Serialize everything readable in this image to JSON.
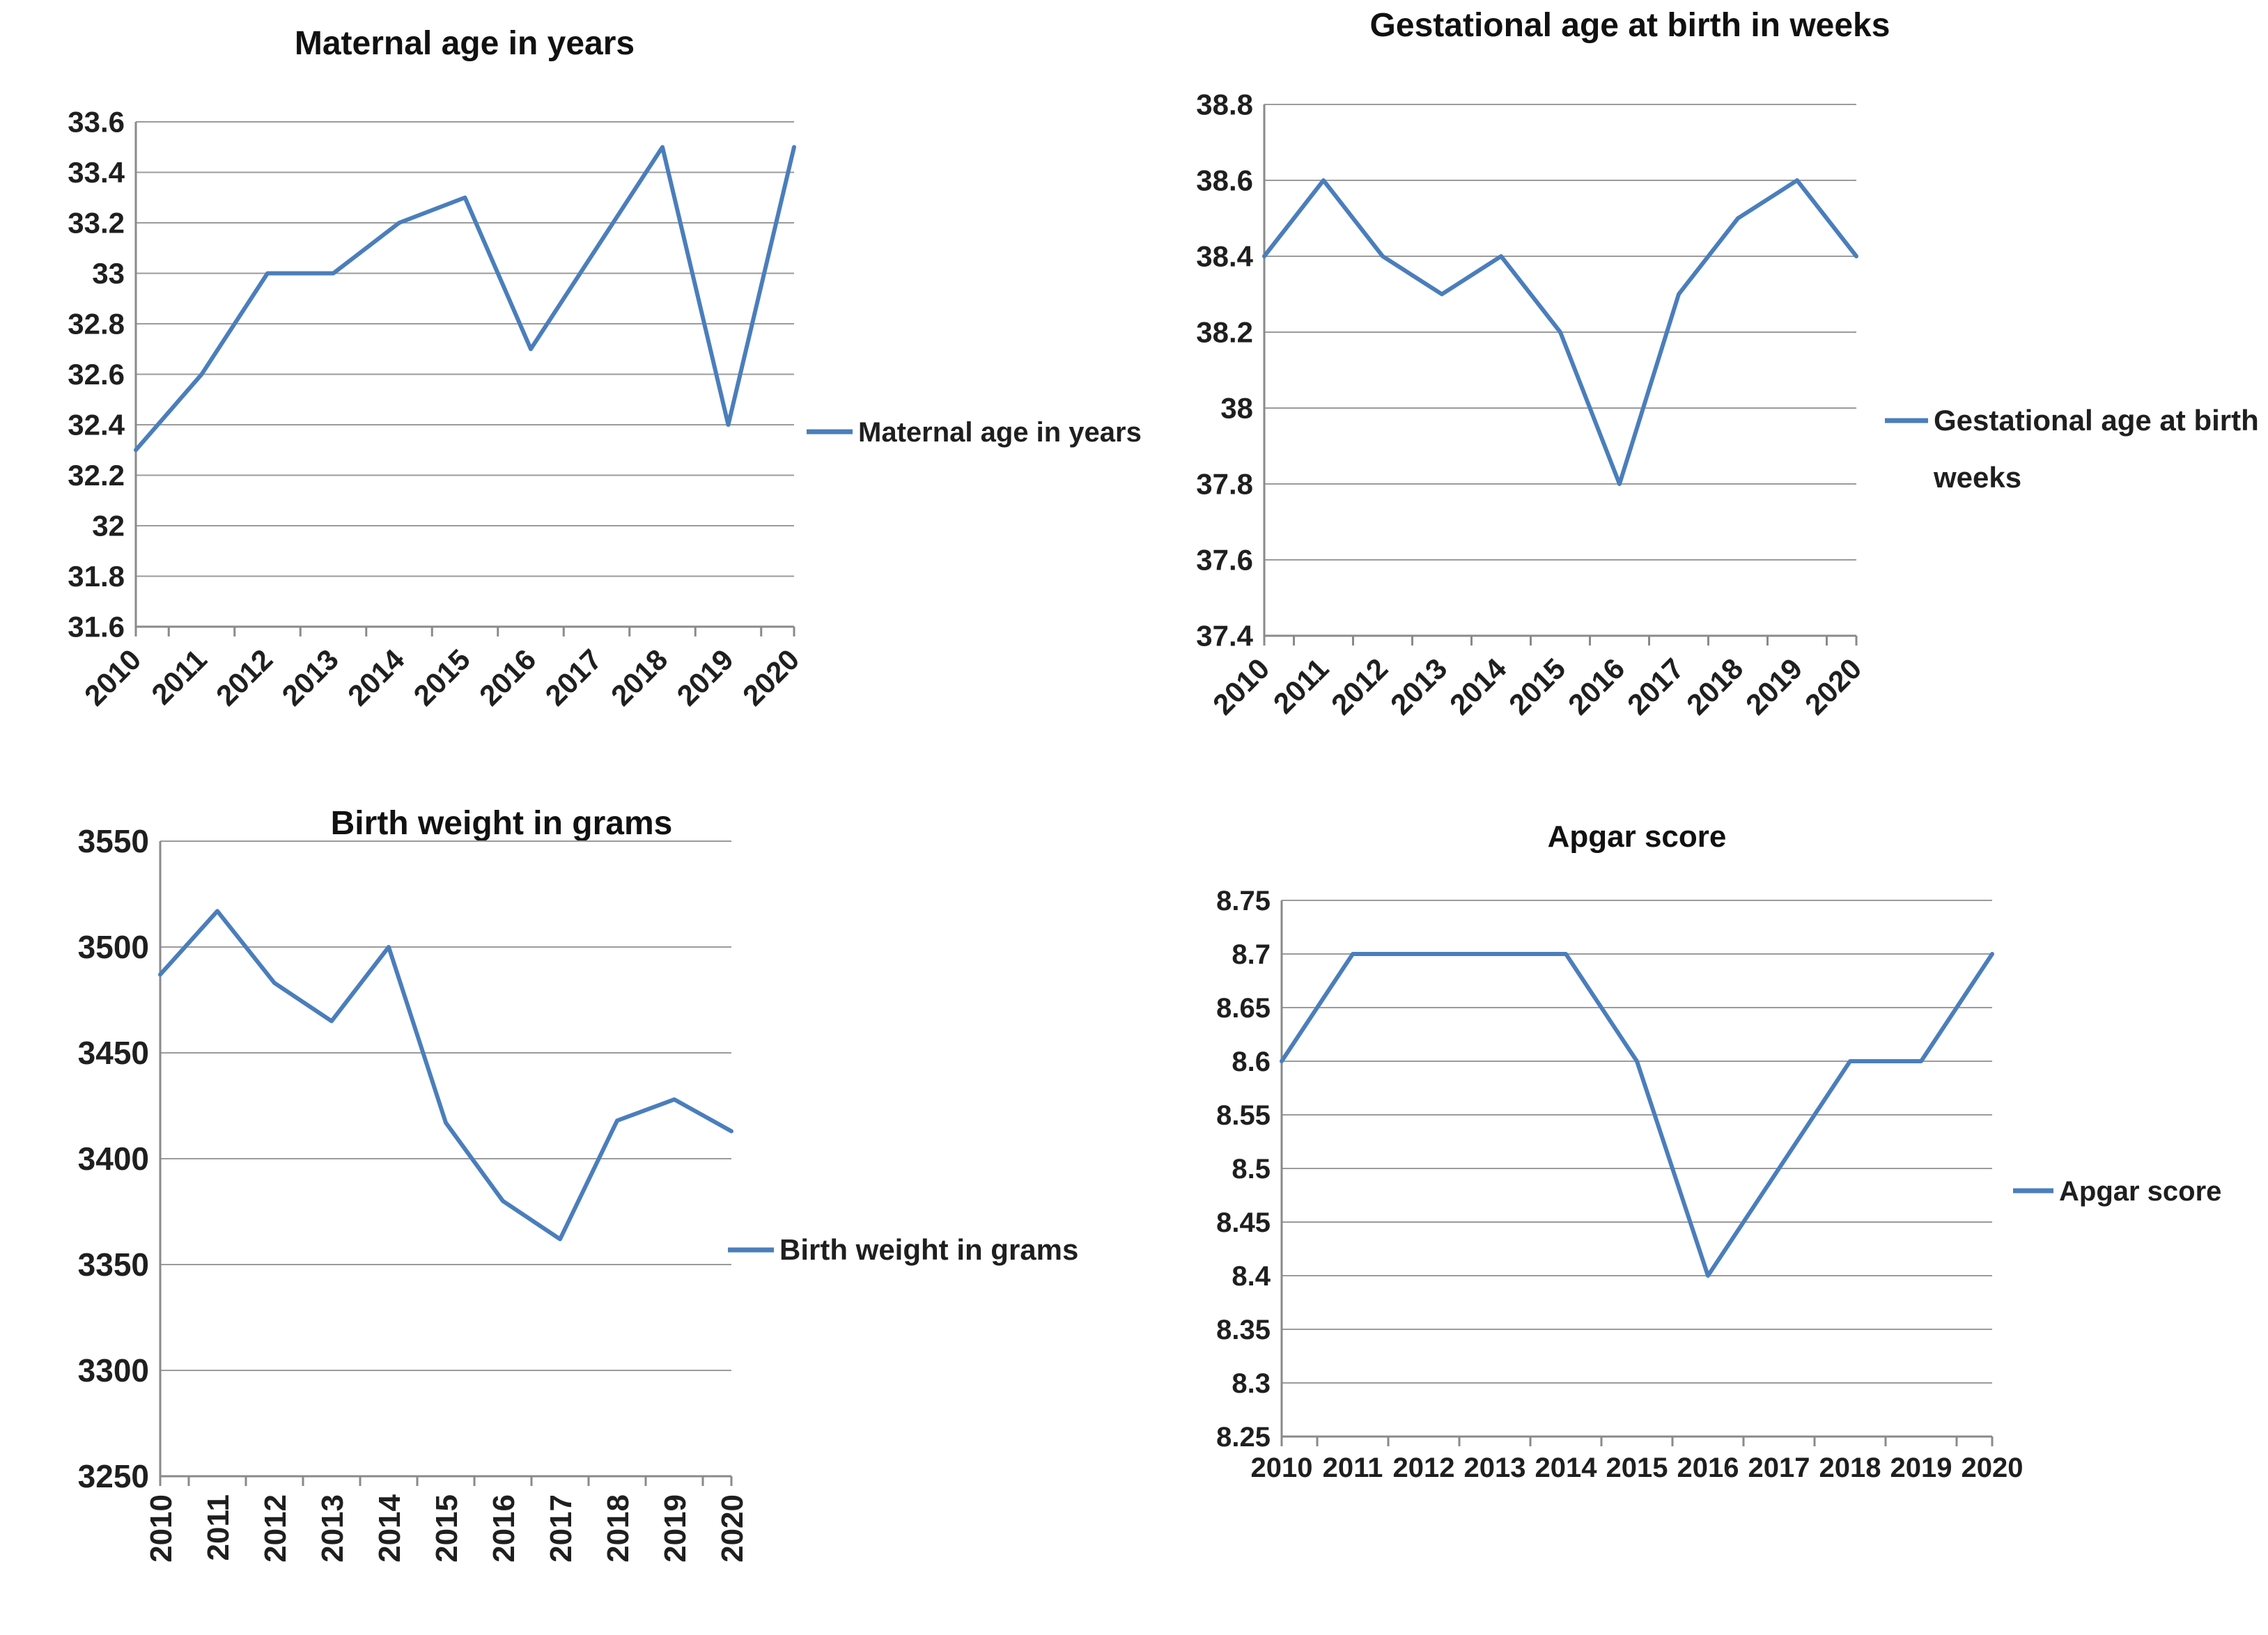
{
  "page": {
    "background": "#ffffff"
  },
  "colors": {
    "series_line": "#4a7ebb",
    "gridline": "#9b9b9b",
    "axis": "#8a8a8a",
    "tick_text": "#1f1f1f",
    "title_text": "#111111"
  },
  "chart_data": [
    {
      "type": "line",
      "title": "Maternal age in years",
      "legend": [
        "Maternal age in years"
      ],
      "legend_position": "right",
      "grid": true,
      "categories": [
        "2010",
        "2011",
        "2012",
        "2013",
        "2014",
        "2015",
        "2016",
        "2017",
        "2018",
        "2019",
        "2020"
      ],
      "values": [
        32.3,
        32.6,
        33,
        33,
        33.2,
        33.3,
        32.7,
        33.1,
        33.5,
        32.4,
        33.5
      ],
      "ylim": [
        31.6,
        33.6
      ],
      "ytick_step": 0.2,
      "ytick_labels": [
        "33.6",
        "33.4",
        "33.2",
        "33",
        "32.8",
        "32.6",
        "32.4",
        "32.2",
        "32",
        "31.8",
        "31.6"
      ],
      "xtick_rotation_deg": -45
    },
    {
      "type": "line",
      "title": "Gestational age at birth in weeks",
      "legend": [
        "Gestational age at birth in",
        "weeks"
      ],
      "legend_position": "right",
      "grid": true,
      "categories": [
        "2010",
        "2011",
        "2012",
        "2013",
        "2014",
        "2015",
        "2016",
        "2017",
        "2018",
        "2019",
        "2020"
      ],
      "values": [
        38.4,
        38.6,
        38.4,
        38.3,
        38.4,
        38.2,
        37.8,
        38.3,
        38.5,
        38.6,
        38.4
      ],
      "ylim": [
        37.4,
        38.8
      ],
      "ytick_step": 0.2,
      "ytick_labels": [
        "38.8",
        "38.6",
        "38.4",
        "38.2",
        "38",
        "37.8",
        "37.6",
        "37.4"
      ],
      "xtick_rotation_deg": -45
    },
    {
      "type": "line",
      "title": "Birth weight in grams",
      "legend": [
        "Birth weight in grams"
      ],
      "legend_position": "right",
      "grid": true,
      "categories": [
        "2010",
        "2011",
        "2012",
        "2013",
        "2014",
        "2015",
        "2016",
        "2017",
        "2018",
        "2019",
        "2020"
      ],
      "values": [
        3487,
        3517,
        3483,
        3465,
        3500,
        3417,
        3380,
        3362,
        3418,
        3428,
        3413
      ],
      "ylim": [
        3250,
        3550
      ],
      "ytick_step": 50,
      "ytick_labels": [
        "3550",
        "3500",
        "3450",
        "3400",
        "3350",
        "3300",
        "3250"
      ],
      "xtick_rotation_deg": -90
    },
    {
      "type": "line",
      "title": "Apgar score",
      "legend": [
        "Apgar score"
      ],
      "legend_position": "right",
      "grid": true,
      "categories": [
        "2010",
        "2011",
        "2012",
        "2013",
        "2014",
        "2015",
        "2016",
        "2017",
        "2018",
        "2019",
        "2020"
      ],
      "values": [
        8.6,
        8.7,
        8.7,
        8.7,
        8.7,
        8.6,
        8.4,
        8.5,
        8.6,
        8.6,
        8.7
      ],
      "ylim": [
        8.25,
        8.75
      ],
      "ytick_step": 0.05,
      "ytick_labels": [
        "8.75",
        "8.7",
        "8.65",
        "8.6",
        "8.55",
        "8.5",
        "8.45",
        "8.4",
        "8.35",
        "8.3",
        "8.25"
      ],
      "xtick_rotation_deg": 0
    }
  ]
}
